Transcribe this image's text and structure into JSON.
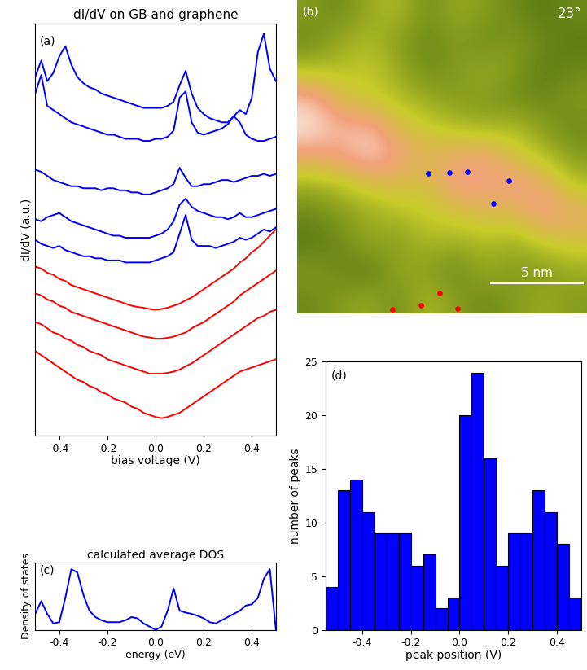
{
  "chart_data": [
    {
      "type": "line",
      "panel_label": "(a)",
      "title": "dI/dV on GB and graphene",
      "xlabel": "bias voltage (V)",
      "ylabel": "dI/dV (a.u.)",
      "xlim": [
        -0.5,
        0.5
      ],
      "xticks": [
        -0.4,
        -0.2,
        0.0,
        0.2,
        0.4
      ],
      "ylim": [
        0,
        10
      ],
      "tick_labels": "x",
      "x": [
        -0.5,
        -0.475,
        -0.45,
        -0.425,
        -0.4,
        -0.375,
        -0.35,
        -0.325,
        -0.3,
        -0.275,
        -0.25,
        -0.225,
        -0.2,
        -0.175,
        -0.15,
        -0.125,
        -0.1,
        -0.075,
        -0.05,
        -0.025,
        0.0,
        0.025,
        0.05,
        0.075,
        0.1,
        0.125,
        0.15,
        0.175,
        0.2,
        0.225,
        0.25,
        0.275,
        0.3,
        0.325,
        0.35,
        0.375,
        0.4,
        0.425,
        0.45,
        0.475,
        0.5
      ],
      "series": [
        {
          "color": "#0000ff",
          "values": [
            8.7,
            9.1,
            8.6,
            8.8,
            9.2,
            9.45,
            9.0,
            8.7,
            8.55,
            8.45,
            8.4,
            8.3,
            8.25,
            8.2,
            8.15,
            8.1,
            8.05,
            8.0,
            7.95,
            7.95,
            7.95,
            7.95,
            8.0,
            8.1,
            8.5,
            8.85,
            8.3,
            7.95,
            7.8,
            7.7,
            7.65,
            7.6,
            7.6,
            7.75,
            7.9,
            7.8,
            8.2,
            9.3,
            9.75,
            8.9,
            8.6
          ]
        },
        {
          "color": "#0000ff",
          "values": [
            8.3,
            8.75,
            8.0,
            7.9,
            7.8,
            7.7,
            7.6,
            7.55,
            7.5,
            7.45,
            7.4,
            7.35,
            7.3,
            7.3,
            7.25,
            7.2,
            7.2,
            7.2,
            7.15,
            7.15,
            7.2,
            7.2,
            7.25,
            7.4,
            8.2,
            8.35,
            7.6,
            7.35,
            7.3,
            7.35,
            7.4,
            7.45,
            7.55,
            7.75,
            7.6,
            7.3,
            7.2,
            7.15,
            7.15,
            7.2,
            7.25
          ]
        },
        {
          "color": "#0000ff",
          "values": [
            6.45,
            6.4,
            6.3,
            6.2,
            6.15,
            6.1,
            6.05,
            6.05,
            6.0,
            6.0,
            6.0,
            5.95,
            6.0,
            6.0,
            5.95,
            5.95,
            5.9,
            5.9,
            5.85,
            5.85,
            5.9,
            5.95,
            6.0,
            6.1,
            6.5,
            6.25,
            6.05,
            6.05,
            6.1,
            6.1,
            6.15,
            6.2,
            6.2,
            6.15,
            6.2,
            6.25,
            6.3,
            6.3,
            6.35,
            6.3,
            6.35
          ]
        },
        {
          "color": "#0000ff",
          "values": [
            5.25,
            5.2,
            5.3,
            5.35,
            5.4,
            5.3,
            5.2,
            5.15,
            5.1,
            5.05,
            5.0,
            4.95,
            4.9,
            4.85,
            4.85,
            4.8,
            4.8,
            4.8,
            4.8,
            4.8,
            4.85,
            4.9,
            5.0,
            5.2,
            5.6,
            5.75,
            5.55,
            5.45,
            5.4,
            5.35,
            5.3,
            5.3,
            5.25,
            5.3,
            5.4,
            5.3,
            5.3,
            5.35,
            5.4,
            5.45,
            5.5
          ]
        },
        {
          "color": "#0000ff",
          "values": [
            4.75,
            4.65,
            4.6,
            4.55,
            4.6,
            4.5,
            4.45,
            4.4,
            4.35,
            4.35,
            4.3,
            4.3,
            4.25,
            4.25,
            4.25,
            4.2,
            4.2,
            4.2,
            4.2,
            4.2,
            4.25,
            4.3,
            4.35,
            4.45,
            4.9,
            5.35,
            4.75,
            4.6,
            4.6,
            4.6,
            4.55,
            4.6,
            4.65,
            4.7,
            4.8,
            4.75,
            4.8,
            4.9,
            5.0,
            4.95,
            5.05
          ]
        },
        {
          "color": "#ff0000",
          "values": [
            4.1,
            4.05,
            3.95,
            3.9,
            3.8,
            3.75,
            3.65,
            3.6,
            3.55,
            3.5,
            3.45,
            3.4,
            3.35,
            3.3,
            3.25,
            3.2,
            3.15,
            3.12,
            3.1,
            3.07,
            3.05,
            3.07,
            3.1,
            3.15,
            3.2,
            3.28,
            3.35,
            3.45,
            3.55,
            3.65,
            3.75,
            3.85,
            3.95,
            4.05,
            4.2,
            4.3,
            4.45,
            4.55,
            4.7,
            4.85,
            5.0
          ]
        },
        {
          "color": "#ff0000",
          "values": [
            3.45,
            3.4,
            3.3,
            3.25,
            3.15,
            3.1,
            3.0,
            2.95,
            2.9,
            2.85,
            2.8,
            2.75,
            2.7,
            2.65,
            2.6,
            2.55,
            2.5,
            2.45,
            2.4,
            2.38,
            2.35,
            2.35,
            2.37,
            2.4,
            2.45,
            2.5,
            2.6,
            2.68,
            2.75,
            2.85,
            2.95,
            3.05,
            3.15,
            3.25,
            3.4,
            3.5,
            3.6,
            3.7,
            3.8,
            3.9,
            4.0
          ]
        },
        {
          "color": "#ff0000",
          "values": [
            2.75,
            2.7,
            2.6,
            2.5,
            2.45,
            2.35,
            2.3,
            2.2,
            2.15,
            2.05,
            2.0,
            1.95,
            1.85,
            1.8,
            1.75,
            1.7,
            1.65,
            1.6,
            1.55,
            1.5,
            1.5,
            1.5,
            1.52,
            1.55,
            1.6,
            1.68,
            1.75,
            1.85,
            1.95,
            2.05,
            2.15,
            2.25,
            2.35,
            2.45,
            2.55,
            2.65,
            2.75,
            2.85,
            2.9,
            3.0,
            3.05
          ]
        },
        {
          "color": "#ff0000",
          "values": [
            2.05,
            1.95,
            1.85,
            1.75,
            1.65,
            1.55,
            1.45,
            1.35,
            1.3,
            1.2,
            1.15,
            1.05,
            1.0,
            0.9,
            0.85,
            0.8,
            0.7,
            0.65,
            0.55,
            0.5,
            0.45,
            0.42,
            0.45,
            0.5,
            0.55,
            0.65,
            0.75,
            0.85,
            0.95,
            1.05,
            1.15,
            1.25,
            1.35,
            1.45,
            1.55,
            1.6,
            1.65,
            1.7,
            1.75,
            1.8,
            1.85
          ]
        }
      ]
    },
    {
      "type": "image",
      "panel_label": "(b)",
      "annotation": "23°",
      "tick_labels": false,
      "xlim": [
        0,
        15.8
      ],
      "ylim": [
        0,
        17.2
      ],
      "zlim": [
        0,
        1
      ],
      "cells": [
        [
          0.35,
          0.3,
          0.4,
          0.45,
          0.3,
          0.4,
          0.35,
          0.3,
          0.25,
          0.3
        ],
        [
          0.3,
          0.4,
          0.45,
          0.35,
          0.3,
          0.35,
          0.3,
          0.35,
          0.3,
          0.25
        ],
        [
          0.45,
          0.45,
          0.5,
          0.4,
          0.3,
          0.35,
          0.4,
          0.35,
          0.25,
          0.3
        ],
        [
          0.85,
          0.6,
          0.5,
          0.45,
          0.4,
          0.35,
          0.35,
          0.3,
          0.3,
          0.35
        ],
        [
          0.95,
          0.8,
          0.85,
          0.6,
          0.5,
          0.45,
          0.4,
          0.45,
          0.35,
          0.3
        ],
        [
          0.7,
          0.75,
          0.9,
          0.75,
          0.65,
          0.7,
          0.75,
          0.55,
          0.45,
          0.35
        ],
        [
          0.4,
          0.45,
          0.55,
          0.6,
          0.55,
          0.8,
          0.75,
          0.8,
          0.7,
          0.45
        ],
        [
          0.3,
          0.35,
          0.4,
          0.45,
          0.5,
          0.55,
          0.6,
          0.6,
          0.8,
          0.7
        ],
        [
          0.25,
          0.3,
          0.4,
          0.35,
          0.45,
          0.4,
          0.45,
          0.4,
          0.5,
          0.55
        ],
        [
          0.35,
          0.3,
          0.25,
          0.4,
          0.35,
          0.3,
          0.4,
          0.35,
          0.35,
          0.4
        ],
        [
          0.3,
          0.35,
          0.4,
          0.3,
          0.45,
          0.35,
          0.3,
          0.35,
          0.4,
          0.35
        ]
      ],
      "series": [
        {
          "type": "scatter",
          "marker": "o",
          "color": "#0000ff",
          "x": [
            7.14,
            8.3,
            9.29,
            11.52,
            10.71
          ],
          "values": [
            7.68,
            7.72,
            7.77,
            7.28,
            6.03
          ]
        },
        {
          "type": "scatter",
          "marker": "o",
          "color": "#ff0000",
          "x": [
            5.18,
            6.74,
            7.77,
            8.75
          ],
          "values": [
            0.22,
            0.45,
            1.12,
            0.27
          ]
        }
      ],
      "scale_bar": {
        "x": [
          10.58,
          15.58
        ],
        "y": 1.65,
        "label": "5 nm"
      }
    },
    {
      "type": "line",
      "panel_label": "(c)",
      "title": "calculated average DOS",
      "xlabel": "energy (eV)",
      "ylabel": "Density of states",
      "xlim": [
        -0.5,
        0.5
      ],
      "xticks": [
        -0.4,
        -0.2,
        0.0,
        0.2,
        0.4
      ],
      "ylim": [
        0,
        1.05
      ],
      "tick_labels": "x",
      "x": [
        -0.5,
        -0.475,
        -0.45,
        -0.425,
        -0.4,
        -0.375,
        -0.35,
        -0.325,
        -0.3,
        -0.275,
        -0.25,
        -0.225,
        -0.2,
        -0.175,
        -0.15,
        -0.125,
        -0.1,
        -0.075,
        -0.05,
        -0.025,
        0.0,
        0.025,
        0.05,
        0.075,
        0.1,
        0.125,
        0.15,
        0.175,
        0.2,
        0.225,
        0.25,
        0.275,
        0.3,
        0.325,
        0.35,
        0.375,
        0.4,
        0.425,
        0.45,
        0.475,
        0.5
      ],
      "series": [
        {
          "color": "#0000ff",
          "values": [
            0.25,
            0.45,
            0.25,
            0.1,
            0.12,
            0.5,
            0.95,
            0.9,
            0.55,
            0.3,
            0.2,
            0.15,
            0.12,
            0.12,
            0.12,
            0.15,
            0.2,
            0.18,
            0.1,
            0.05,
            0.0,
            0.05,
            0.3,
            0.65,
            0.3,
            0.27,
            0.25,
            0.22,
            0.18,
            0.12,
            0.1,
            0.15,
            0.2,
            0.25,
            0.3,
            0.38,
            0.4,
            0.5,
            0.8,
            0.95,
            0.0
          ]
        }
      ]
    },
    {
      "type": "histogram",
      "panel_label": "(d)",
      "xlabel": "peak position (V)",
      "ylabel": "number of peaks",
      "color": "#0000ff",
      "bins": [
        -0.55,
        -0.5,
        -0.45,
        -0.4,
        -0.35,
        -0.3,
        -0.25,
        -0.2,
        -0.15,
        -0.1,
        -0.05,
        0.0,
        0.05,
        0.1,
        0.15,
        0.2,
        0.25,
        0.3,
        0.35,
        0.4,
        0.45,
        0.5
      ],
      "values": [
        4,
        13,
        14,
        11,
        9,
        9,
        9,
        6,
        7,
        2,
        3,
        20,
        24,
        16,
        6,
        9,
        9,
        13,
        11,
        8,
        3
      ],
      "xlim": [
        -0.55,
        0.5
      ],
      "xticks": [
        -0.4,
        -0.2,
        0.0,
        0.2,
        0.4
      ],
      "ylim": [
        0,
        25
      ],
      "yticks": [
        0,
        5,
        10,
        15,
        20,
        25
      ]
    }
  ]
}
